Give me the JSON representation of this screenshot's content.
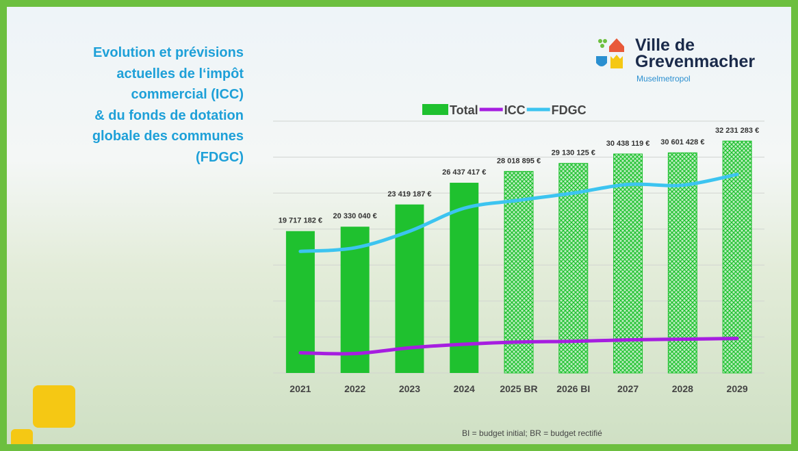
{
  "chart_data": {
    "type": "bar",
    "title": "Evolution et prévisions\nactuelles de l‘impôt\ncommercial (ICC)\n& du fonds de dotation\nglobale des communes\n(FDGC)",
    "categories": [
      "2021",
      "2022",
      "2023",
      "2024",
      "2025 BR",
      "2026 BI",
      "2027",
      "2028",
      "2029"
    ],
    "series": [
      {
        "name": "Total",
        "type": "bar",
        "color": "#1fc12f",
        "values": [
          19717182,
          20330040,
          23419187,
          26437417,
          28018895,
          29130125,
          30438119,
          30601428,
          32231283
        ],
        "value_labels": [
          "19 717 182 €",
          "20 330 040 €",
          "23 419 187 €",
          "26 437 417 €",
          "28 018 895 €",
          "29 130 125 €",
          "30 438 119 €",
          "30 601 428 €",
          "32 231 283 €"
        ],
        "hatched": [
          false,
          false,
          false,
          false,
          true,
          true,
          true,
          true,
          true
        ]
      },
      {
        "name": "ICC",
        "type": "line",
        "color": "#a61ee0",
        "values": [
          2800000,
          2700000,
          3500000,
          4000000,
          4300000,
          4400000,
          4600000,
          4700000,
          4800000
        ]
      },
      {
        "name": "FDGC",
        "type": "line",
        "color": "#3cc4f0",
        "values": [
          16900000,
          17400000,
          19700000,
          22900000,
          24000000,
          25000000,
          26200000,
          26100000,
          27600000
        ]
      }
    ],
    "ylim": [
      0,
      35000000
    ],
    "yticks": [
      0,
      5000000,
      10000000,
      15000000,
      20000000,
      25000000,
      30000000,
      35000000
    ],
    "grid": true,
    "note": "BI = budget initial;  BR = budget rectifié",
    "logo": {
      "line1": "Ville de",
      "line2": "Grevenmacher",
      "tagline": "Muselmetropol"
    }
  }
}
